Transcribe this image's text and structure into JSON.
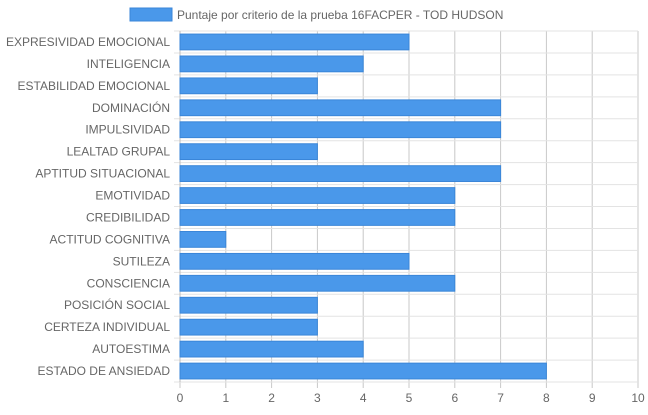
{
  "chart_data": {
    "type": "bar",
    "orientation": "horizontal",
    "categories": [
      "EXPRESIVIDAD EMOCIONAL",
      "INTELIGENCIA",
      "ESTABILIDAD EMOCIONAL",
      "DOMINACIÓN",
      "IMPULSIVIDAD",
      "LEALTAD GRUPAL",
      "APTITUD SITUACIONAL",
      "EMOTIVIDAD",
      "CREDIBILIDAD",
      "ACTITUD COGNITIVA",
      "SUTILEZA",
      "CONSCIENCIA",
      "POSICIÓN SOCIAL",
      "CERTEZA INDIVIDUAL",
      "AUTOESTIMA",
      "ESTADO DE ANSIEDAD"
    ],
    "series": [
      {
        "name": "Puntaje por criterio de la prueba 16FACPER - TOD HUDSON",
        "values": [
          5,
          4,
          3,
          7,
          7,
          3,
          7,
          6,
          6,
          1,
          5,
          6,
          3,
          3,
          4,
          8
        ],
        "color": "#4a98ea",
        "border_color": "#3a86d8"
      }
    ],
    "xlim": [
      0,
      10
    ],
    "xticks": [
      "0",
      "1",
      "2",
      "3",
      "4",
      "5",
      "6",
      "7",
      "8",
      "9",
      "10"
    ],
    "grid": true,
    "legend_position": "top"
  }
}
